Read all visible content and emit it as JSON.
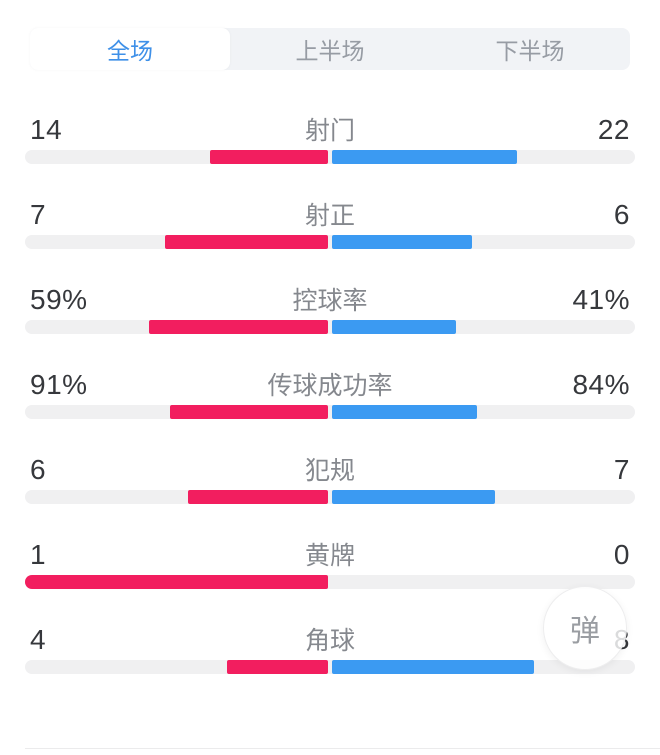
{
  "tabs": {
    "items": [
      {
        "label": "全场",
        "active": true
      },
      {
        "label": "上半场",
        "active": false
      },
      {
        "label": "下半场",
        "active": false
      }
    ]
  },
  "stats": {
    "rows": [
      {
        "label": "射门",
        "left_display": "14",
        "right_display": "22",
        "left_value": 14,
        "right_value": 22
      },
      {
        "label": "射正",
        "left_display": "7",
        "right_display": "6",
        "left_value": 7,
        "right_value": 6
      },
      {
        "label": "控球率",
        "left_display": "59%",
        "right_display": "41%",
        "left_value": 59,
        "right_value": 41
      },
      {
        "label": "传球成功率",
        "left_display": "91%",
        "right_display": "84%",
        "left_value": 91,
        "right_value": 84
      },
      {
        "label": "犯规",
        "left_display": "6",
        "right_display": "7",
        "left_value": 6,
        "right_value": 7
      },
      {
        "label": "黄牌",
        "left_display": "1",
        "right_display": "0",
        "left_value": 1,
        "right_value": 0
      },
      {
        "label": "角球",
        "left_display": "4",
        "right_display": "8",
        "left_value": 4,
        "right_value": 8
      }
    ]
  },
  "fab": {
    "label": "弹"
  },
  "colors": {
    "home_bar": "#f21e5f",
    "away_bar": "#3b9af2",
    "active_tab_text": "#3e90e8",
    "track": "#f0f0f1"
  }
}
